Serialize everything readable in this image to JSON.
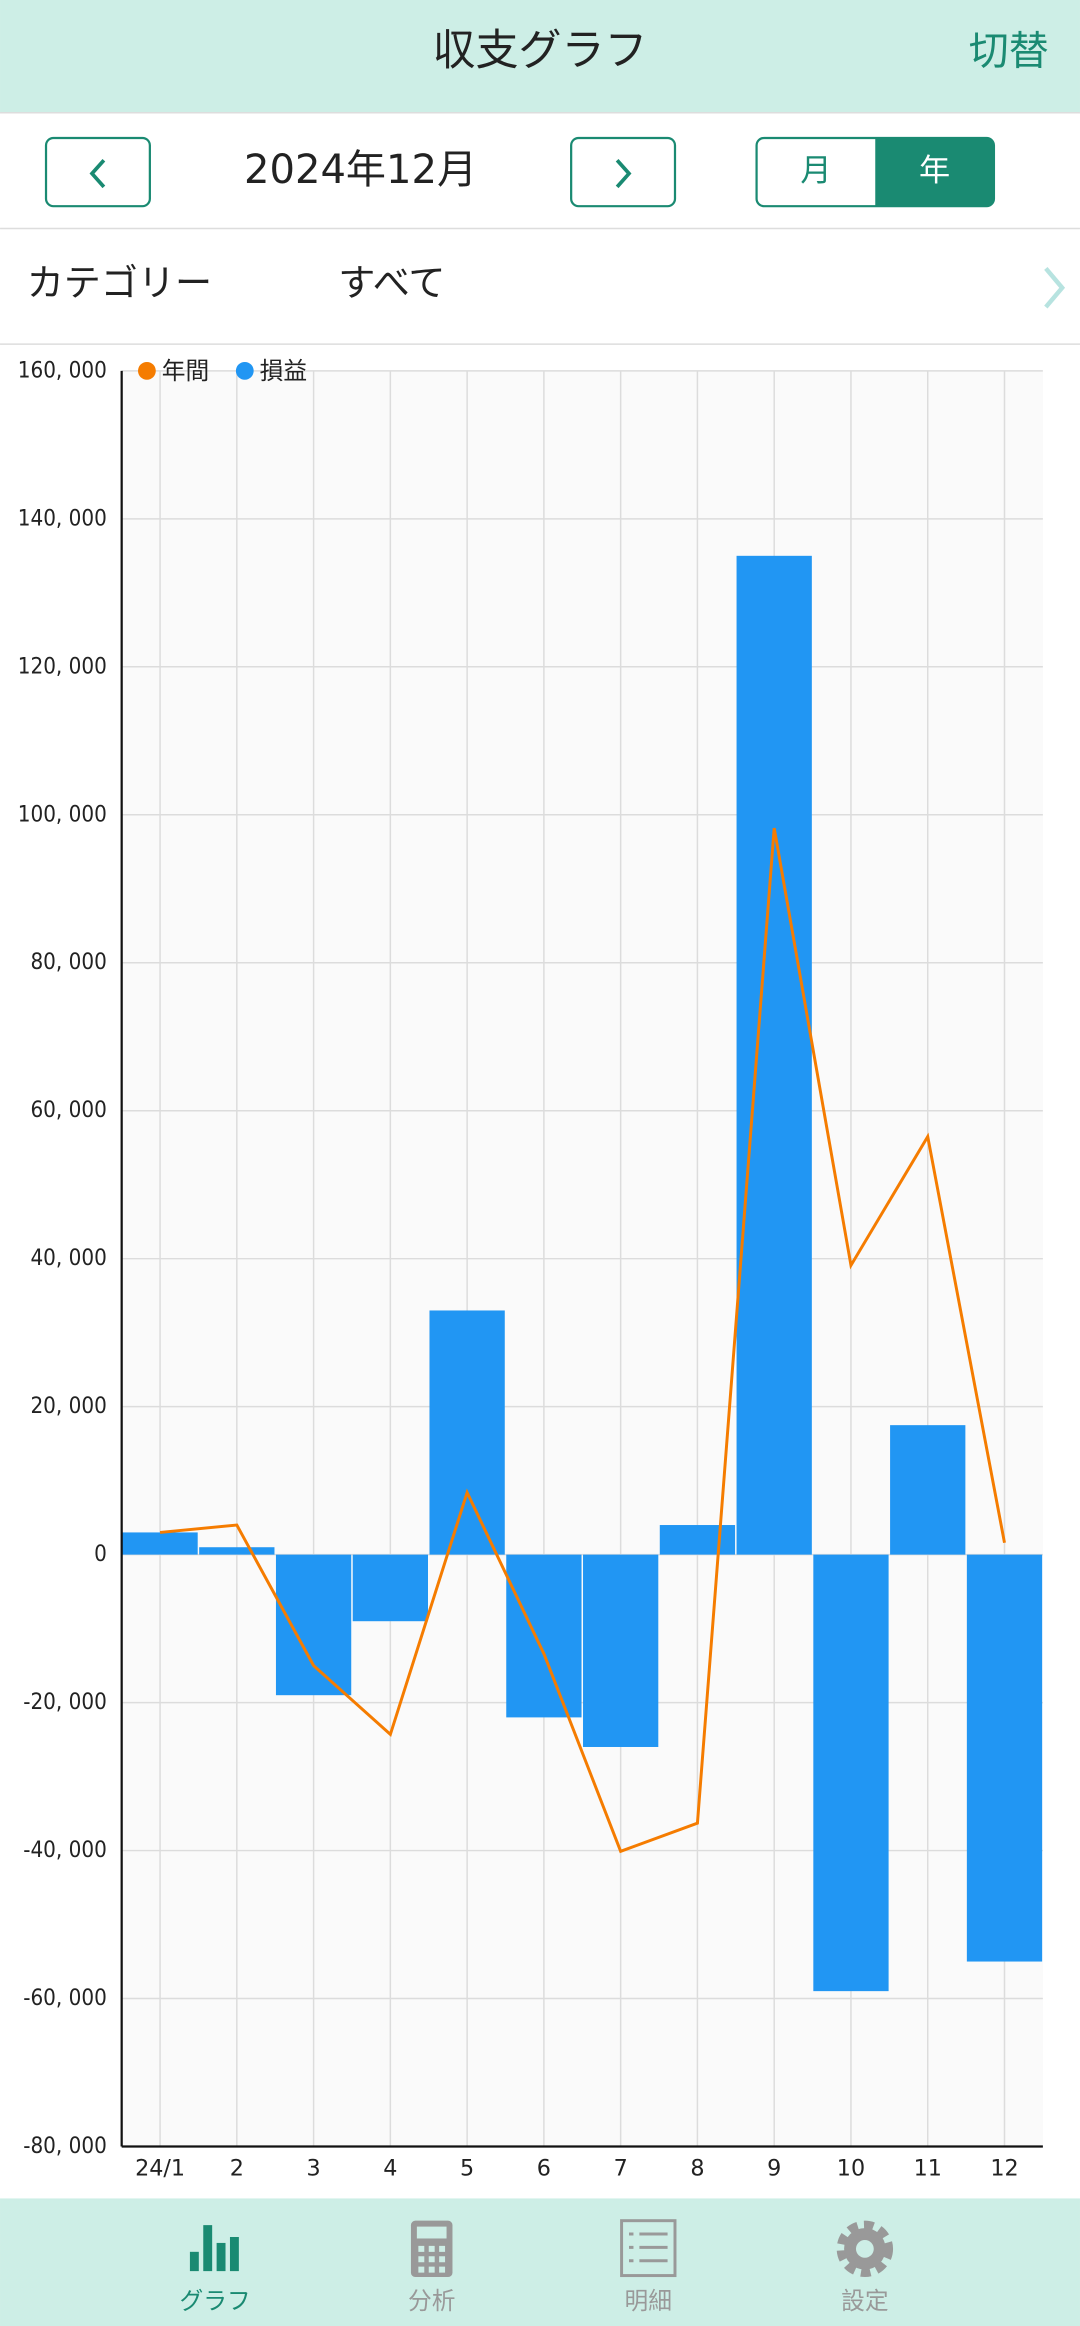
{
  "header": {
    "title": "収支グラフ",
    "action": "切替"
  },
  "period": {
    "label": "2024年12月",
    "modes": [
      "月",
      "年"
    ]
  },
  "filter": {
    "label": "カテゴリー",
    "value": "すべて"
  },
  "chart_data": {
    "type": "bar",
    "categories": [
      "24/1",
      "2",
      "3",
      "4",
      "5",
      "6",
      "7",
      "8",
      "9",
      "10",
      "11",
      "12"
    ],
    "series": [
      {
        "name": "年間",
        "type": "line",
        "color": "#f57c00",
        "values": [
          3000,
          4000,
          -15000,
          -24300,
          8400,
          -13400,
          -40100,
          -36300,
          98200,
          39100,
          56500,
          1600
        ]
      },
      {
        "name": "損益",
        "type": "bar",
        "color": "#2196f3",
        "values": [
          3000,
          1000,
          -19000,
          -9000,
          33000,
          -22000,
          -26000,
          4000,
          135000,
          -59000,
          17500,
          -55000
        ]
      }
    ],
    "ylim": [
      -80000,
      160000
    ],
    "yticks": [
      {
        "value": -80000,
        "label": "-80, 000"
      },
      {
        "value": -60000,
        "label": "-60, 000"
      },
      {
        "value": -40000,
        "label": "-40, 000"
      },
      {
        "value": -20000,
        "label": "-20, 000"
      },
      0,
      {
        "value": 20000,
        "label": "20, 000"
      },
      {
        "value": 40000,
        "label": "40, 000"
      },
      {
        "value": 60000,
        "label": "60, 000"
      },
      {
        "value": 80000,
        "label": "80, 000"
      },
      {
        "value": 100000,
        "label": "100, 000"
      },
      {
        "value": 120000,
        "label": "120, 000"
      },
      {
        "value": 140000,
        "label": "140, 000"
      },
      {
        "value": 160000,
        "label": "160, 000"
      }
    ],
    "grid": true,
    "legend": "top-left"
  },
  "tabs": [
    "グラフ",
    "分析",
    "明細",
    "設定"
  ]
}
